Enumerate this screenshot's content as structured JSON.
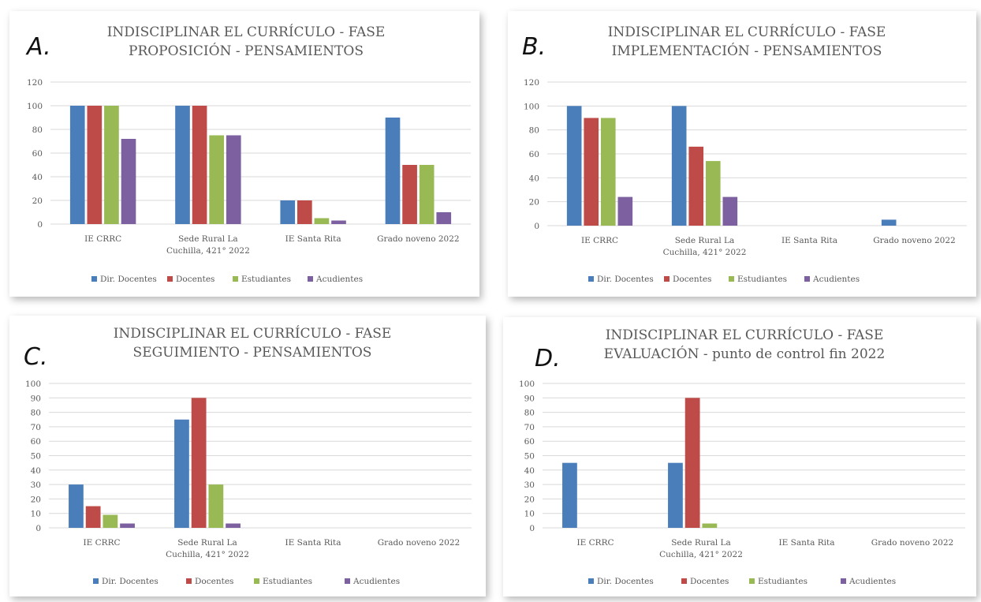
{
  "colors": {
    "Dir. Docentes": "#4a7ebb",
    "Docentes": "#be4b48",
    "Estudiantes": "#98b954",
    "Acudientes": "#7d60a0"
  },
  "chart_data": [
    {
      "type": "bar",
      "letter": "A.",
      "title_lines": [
        "INDISCIPLINAR EL CURRÍCULO - FASE",
        "PROPOSICIÓN - PENSAMIENTOS"
      ],
      "categories": [
        [
          "IE CRRC"
        ],
        [
          "Sede Rural La",
          "Cuchilla, 421° 2022"
        ],
        [
          "IE Santa Rita"
        ],
        [
          "Grado noveno 2022"
        ]
      ],
      "yticks": [
        0,
        20,
        40,
        60,
        80,
        100,
        120
      ],
      "ylim": [
        0,
        120
      ],
      "grid": true,
      "legend_position": "bottom",
      "series": [
        {
          "name": "Dir. Docentes",
          "values": [
            100,
            100,
            20,
            90
          ]
        },
        {
          "name": "Docentes",
          "values": [
            100,
            100,
            20,
            50
          ]
        },
        {
          "name": "Estudiantes",
          "values": [
            100,
            75,
            5,
            50
          ]
        },
        {
          "name": "Acudientes",
          "values": [
            72,
            75,
            3,
            10
          ]
        }
      ]
    },
    {
      "type": "bar",
      "letter": "B.",
      "title_lines": [
        "INDISCIPLINAR EL CURRÍCULO - FASE",
        "IMPLEMENTACIÓN - PENSAMIENTOS"
      ],
      "categories": [
        [
          "IE CRRC"
        ],
        [
          "Sede Rural La",
          "Cuchilla, 421° 2022"
        ],
        [
          "IE Santa Rita"
        ],
        [
          "Grado noveno 2022"
        ]
      ],
      "yticks": [
        0,
        20,
        40,
        60,
        80,
        100,
        120
      ],
      "ylim": [
        0,
        120
      ],
      "grid": true,
      "legend_position": "bottom",
      "series": [
        {
          "name": "Dir. Docentes",
          "values": [
            100,
            100,
            0,
            5
          ]
        },
        {
          "name": "Docentes",
          "values": [
            90,
            66,
            0,
            0
          ]
        },
        {
          "name": "Estudiantes",
          "values": [
            90,
            54,
            0,
            0
          ]
        },
        {
          "name": "Acudientes",
          "values": [
            24,
            24,
            0,
            0
          ]
        }
      ]
    },
    {
      "type": "bar",
      "letter": "C.",
      "title_lines": [
        "INDISCIPLINAR EL CURRÍCULO - FASE",
        "SEGUIMIENTO - PENSAMIENTOS"
      ],
      "categories": [
        [
          "IE CRRC"
        ],
        [
          "Sede Rural La",
          "Cuchilla, 421° 2022"
        ],
        [
          "IE Santa Rita"
        ],
        [
          "Grado noveno 2022"
        ]
      ],
      "yticks": [
        0,
        10,
        20,
        30,
        40,
        50,
        60,
        70,
        80,
        90,
        100
      ],
      "ylim": [
        0,
        100
      ],
      "grid": true,
      "legend_position": "bottom",
      "series": [
        {
          "name": "Dir. Docentes",
          "values": [
            30,
            75,
            0,
            0
          ]
        },
        {
          "name": "Docentes",
          "values": [
            15,
            90,
            0,
            0
          ]
        },
        {
          "name": "Estudiantes",
          "values": [
            9,
            30,
            0,
            0
          ]
        },
        {
          "name": "Acudientes",
          "values": [
            3,
            3,
            0,
            0
          ]
        }
      ]
    },
    {
      "type": "bar",
      "letter": "D.",
      "title_lines": [
        "INDISCIPLINAR EL CURRÍCULO - FASE",
        "EVALUACIÓN - punto de control fin 2022"
      ],
      "categories": [
        [
          "IE CRRC"
        ],
        [
          "Sede Rural La",
          "Cuchilla, 421° 2022"
        ],
        [
          "IE Santa Rita"
        ],
        [
          "Grado noveno 2022"
        ]
      ],
      "yticks": [
        0,
        10,
        20,
        30,
        40,
        50,
        60,
        70,
        80,
        90,
        100
      ],
      "ylim": [
        0,
        100
      ],
      "grid": true,
      "legend_position": "bottom",
      "series": [
        {
          "name": "Dir. Docentes",
          "values": [
            45,
            45,
            0,
            0
          ]
        },
        {
          "name": "Docentes",
          "values": [
            0,
            90,
            0,
            0
          ]
        },
        {
          "name": "Estudiantes",
          "values": [
            0,
            3,
            0,
            0
          ]
        },
        {
          "name": "Acudientes",
          "values": [
            0,
            0,
            0,
            0
          ]
        }
      ]
    }
  ]
}
